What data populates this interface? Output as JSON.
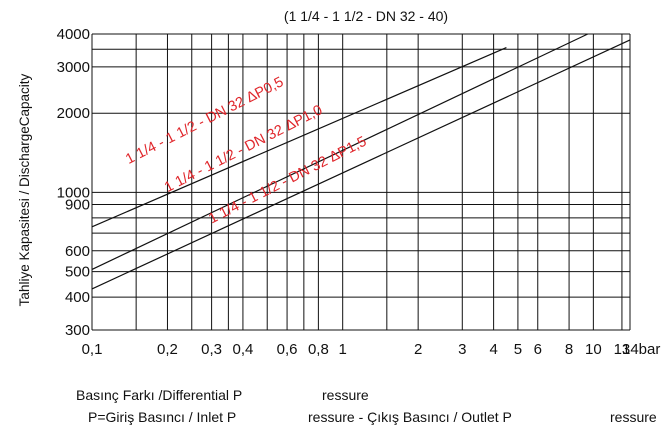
{
  "chart_data": {
    "type": "line",
    "title": "(1 1/4 - 1 1/2 - DN 32 - 40)",
    "ylabel": "Tahliye Kapasitesi / DischargeCapacity",
    "xlabel_lines": [
      [
        "Basınç Farkı /Differential P",
        "ressure"
      ],
      [
        "P=Giriş Basıncı / Inlet P",
        "ressure - Çıkış Basıncı / Outlet P",
        "ressure"
      ]
    ],
    "x_scale": "log",
    "y_scale": "log",
    "xlim": [
      0.1,
      14
    ],
    "ylim": [
      300,
      4000
    ],
    "grid": true,
    "x_ticks": [
      {
        "value": 0.1,
        "label": "0,1"
      },
      {
        "value": 0.2,
        "label": "0,2"
      },
      {
        "value": 0.3,
        "label": "0,3"
      },
      {
        "value": 0.4,
        "label": "0,4"
      },
      {
        "value": 0.6,
        "label": "0,6"
      },
      {
        "value": 0.8,
        "label": "0,8"
      },
      {
        "value": 1,
        "label": "1"
      },
      {
        "value": 2,
        "label": "2"
      },
      {
        "value": 3,
        "label": "3"
      },
      {
        "value": 4,
        "label": "4"
      },
      {
        "value": 5,
        "label": "5"
      },
      {
        "value": 6,
        "label": "6"
      },
      {
        "value": 8,
        "label": "8"
      },
      {
        "value": 10,
        "label": "10"
      },
      {
        "value": 13,
        "label": "13"
      },
      {
        "value": 14,
        "label": "14bar"
      }
    ],
    "x_grid": [
      0.1,
      0.15,
      0.2,
      0.25,
      0.3,
      0.35,
      0.4,
      0.5,
      0.6,
      0.7,
      0.8,
      1,
      1.5,
      2,
      3,
      4,
      5,
      6,
      8,
      10,
      13,
      14
    ],
    "y_ticks": [
      {
        "value": 300,
        "label": "300"
      },
      {
        "value": 400,
        "label": "400"
      },
      {
        "value": 500,
        "label": "500"
      },
      {
        "value": 600,
        "label": "600"
      },
      {
        "value": 900,
        "label": "900"
      },
      {
        "value": 1000,
        "label": "1000"
      },
      {
        "value": 2000,
        "label": "2000"
      },
      {
        "value": 3000,
        "label": "3000"
      },
      {
        "value": 4000,
        "label": "4000"
      }
    ],
    "y_grid": [
      300,
      400,
      500,
      600,
      700,
      800,
      900,
      1000,
      2000,
      3000,
      3500,
      4000
    ],
    "series": [
      {
        "name": "1 1/4 - 1 1/2 - DN 32 ΔP0,5",
        "x": [
          0.1,
          4.5
        ],
        "y": [
          740,
          3550
        ]
      },
      {
        "name": "1 1/4 - 1 1/2 - DN 32 ΔP1,0",
        "x": [
          0.1,
          9.5
        ],
        "y": [
          510,
          4000
        ]
      },
      {
        "name": "1 1/4 - 1 1/2 - DN 32 ΔP1,5",
        "x": [
          0.1,
          14
        ],
        "y": [
          430,
          3800
        ]
      }
    ],
    "annotations": [
      {
        "text": "1 1/4 - 1 1/2 - DN 32 ΔP0,5",
        "x": 0.14,
        "y": 1280
      },
      {
        "text": "1 1/4 - 1 1/2 - DN 32 ΔP1,0",
        "x": 0.2,
        "y": 1000
      },
      {
        "text": "1 1/4 - 1 1/2 - DN 32 ΔP1,5",
        "x": 0.3,
        "y": 760
      }
    ]
  }
}
